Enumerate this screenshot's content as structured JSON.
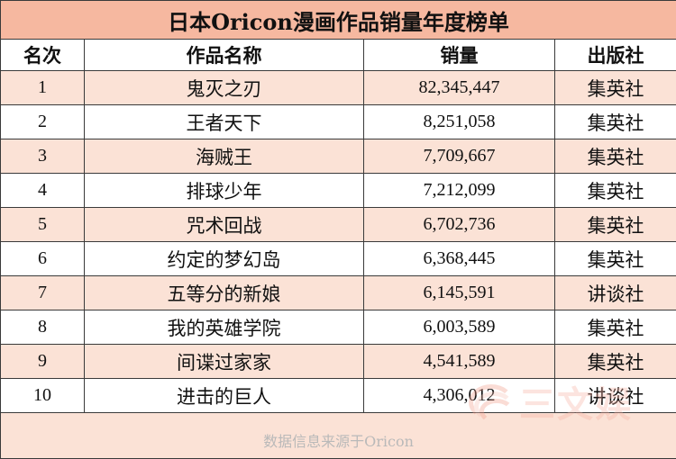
{
  "title": "日本Oricon漫画作品销量年度榜单",
  "headers": {
    "rank": "名次",
    "work": "作品名称",
    "sales": "销量",
    "publisher": "出版社"
  },
  "rows": [
    {
      "rank": "1",
      "work": "鬼灭之刃",
      "sales": "82,345,447",
      "publisher": "集英社"
    },
    {
      "rank": "2",
      "work": "王者天下",
      "sales": "8,251,058",
      "publisher": "集英社"
    },
    {
      "rank": "3",
      "work": "海贼王",
      "sales": "7,709,667",
      "publisher": "集英社"
    },
    {
      "rank": "4",
      "work": "排球少年",
      "sales": "7,212,099",
      "publisher": "集英社"
    },
    {
      "rank": "5",
      "work": "咒术回战",
      "sales": "6,702,736",
      "publisher": "集英社"
    },
    {
      "rank": "6",
      "work": "约定的梦幻岛",
      "sales": "6,368,445",
      "publisher": "集英社"
    },
    {
      "rank": "7",
      "work": "五等分的新娘",
      "sales": "6,145,591",
      "publisher": "讲谈社"
    },
    {
      "rank": "8",
      "work": "我的英雄学院",
      "sales": "6,003,589",
      "publisher": "集英社"
    },
    {
      "rank": "9",
      "work": "间谍过家家",
      "sales": "4,541,589",
      "publisher": "集英社"
    },
    {
      "rank": "10",
      "work": "进击的巨人",
      "sales": "4,306,012",
      "publisher": "讲谈社"
    }
  ],
  "footer": "数据信息来源于Oricon",
  "watermark": "三文娱",
  "colors": {
    "title_bg": "#f6b8a0",
    "stripe": "#fbe2d6",
    "border": "#3a3a3a",
    "footer_text": "#b9b9b9"
  }
}
